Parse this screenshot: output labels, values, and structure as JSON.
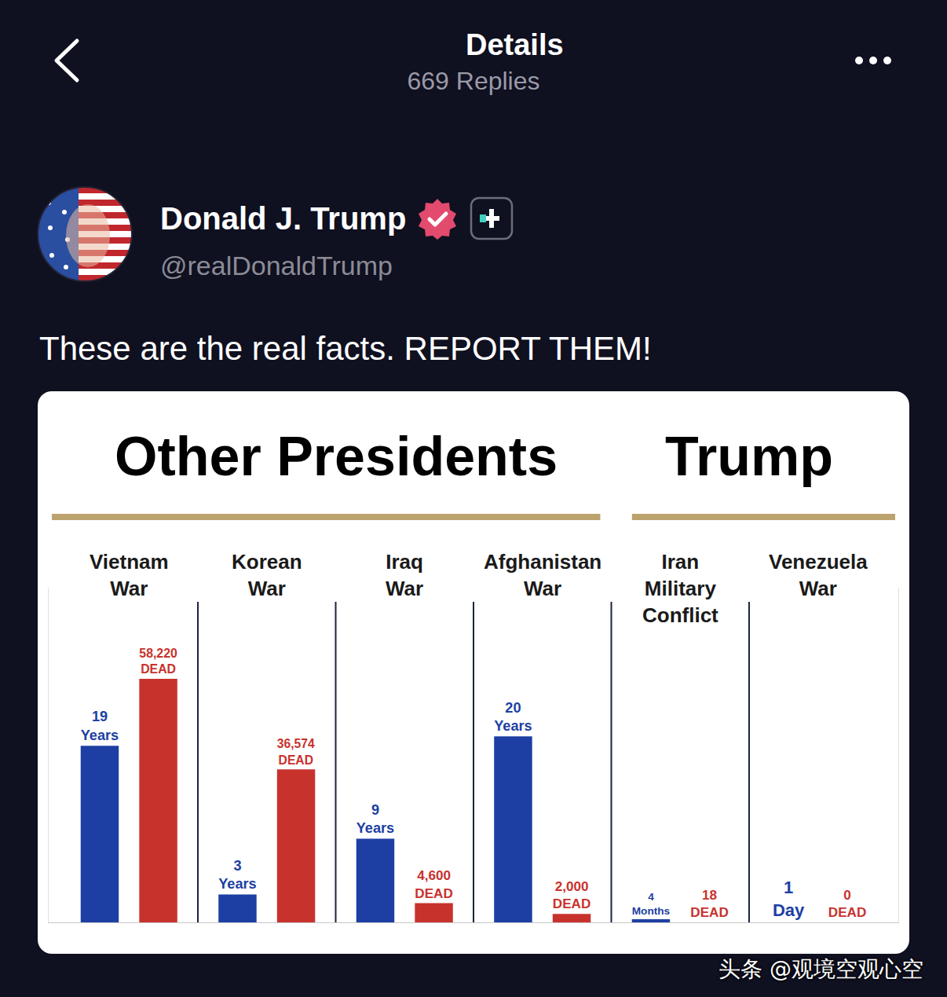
{
  "header": {
    "title": "Details",
    "subtitle": "669 Replies"
  },
  "post": {
    "author": "Donald J. Trump",
    "handle": "@realDonaldTrump",
    "text": "These are the real facts. REPORT THEM!"
  },
  "watermark": "头条 @观境空观心空",
  "chart_data": {
    "type": "bar",
    "groups": [
      {
        "label": "Other Presidents",
        "members": [
          "Vietnam War",
          "Korean War",
          "Iraq War",
          "Afghanistan War"
        ]
      },
      {
        "label": "Trump",
        "members": [
          "Iran Military Conflict",
          "Venezuela War"
        ]
      }
    ],
    "categories": [
      "Vietnam War",
      "Korean War",
      "Iraq War",
      "Afghanistan War",
      "Iran Military Conflict",
      "Venezuela War"
    ],
    "series": [
      {
        "color": "#1d3fa3",
        "values": [
          19,
          3,
          9,
          20,
          0.3333,
          0.00274
        ],
        "value_labels": [
          "19 Years",
          "3 Years",
          "9 Years",
          "20 Years",
          "4 Months",
          "1 Day"
        ]
      },
      {
        "color": "#c8322d",
        "axis": "y2",
        "values": [
          58220,
          36574,
          4600,
          2000,
          18,
          0
        ],
        "value_labels": [
          "58,220 DEAD",
          "36,574 DEAD",
          "4,600 DEAD",
          "2,000 DEAD",
          "18 DEAD",
          "0 DEAD"
        ]
      }
    ],
    "ylim": [
      0,
      36
    ],
    "y2lim": [
      0,
      80000
    ],
    "grid": false,
    "data_labels": true,
    "tick_labels": false
  }
}
